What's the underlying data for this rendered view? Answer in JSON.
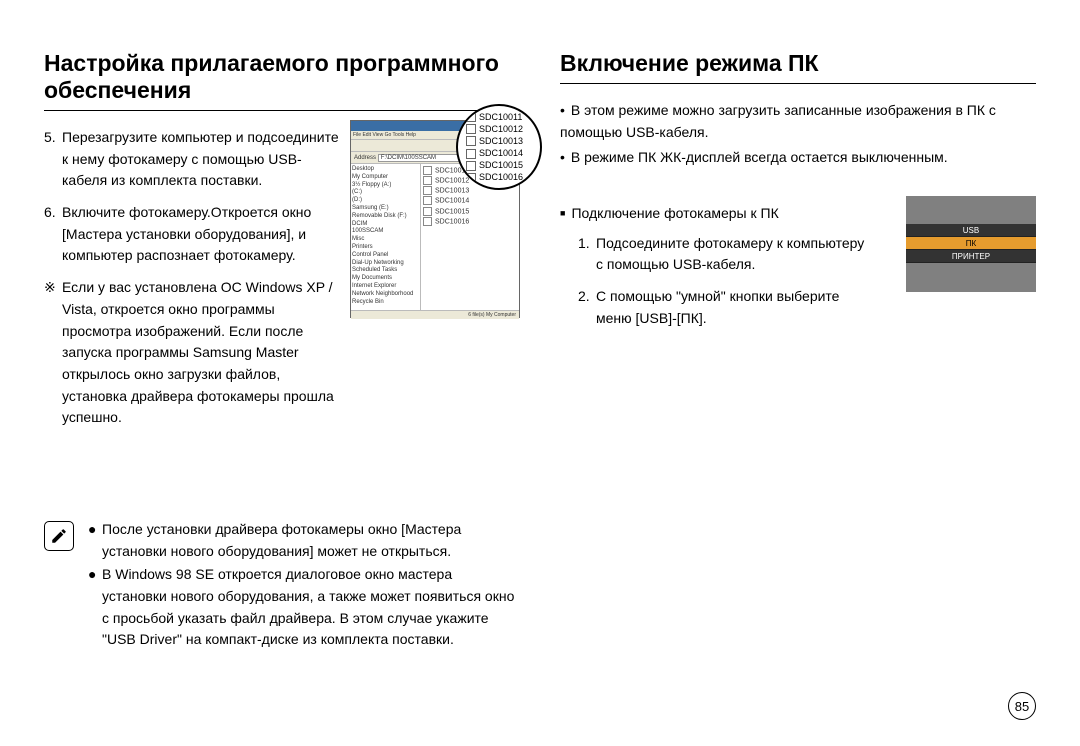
{
  "left": {
    "heading": "Настройка прилагаемого программного обеспечения",
    "step5": {
      "num": "5.",
      "text": "Перезагрузите компьютер и подсоедините к нему фотокамеру с помощью USB-кабеля из комплекта поставки."
    },
    "step6": {
      "num": "6.",
      "text": "Включите фотокамеру.Откроется окно [Мастера установки оборудования], и компьютер распознает фотокамеру."
    },
    "diamond_prefix": "※",
    "diamond_text": "Если у вас установлена ОС Windows XP / Vista, откроется окно программы просмотра изображений. Если после запуска программы Samsung Master открылось окно загрузки файлов, установка драйвера фотокамеры прошла успешно.",
    "note1": "После установки драйвера фотокамеры окно [Мастера установки нового оборудования] может не открыться.",
    "note2": "В Windows 98 SE откроется диалоговое окно мастера установки нового оборудования, а также может появиться окно с просьбой указать файл драйвера. В этом случае укажите \"USB Driver\" на компакт-диске из комплекта поставки."
  },
  "right": {
    "heading": "Включение режима ПК",
    "intro1": "В этом режиме можно загрузить записанные изображения в ПК с помощью USB-кабеля.",
    "intro2": "В режиме ПК ЖК-дисплей всегда остается выключенным.",
    "sub_heading": "Подключение фотокамеры к ПК",
    "step1": {
      "num": "1.",
      "text": "Подсоедините фотокамеру к компьютеру с помощью USB-кабеля."
    },
    "step2": {
      "num": "2.",
      "text": "С помощью \"умной\" кнопки выберите меню [USB]-[ПК]."
    }
  },
  "explorer": {
    "menu": "File  Edit  View  Go  Tools  Help",
    "address_label": "Address",
    "address_value": "F:\\DCIM\\100SSCAM",
    "tree": [
      "Desktop",
      " My Computer",
      "  3½ Floppy (A:)",
      "  (C:)",
      "  (D:)",
      "  Samsung (E:)",
      "  Removable Disk (F:)",
      "   DCIM",
      "    100SSCAM",
      "   Misc",
      "  Printers",
      "  Control Panel",
      "  Dial-Up Networking",
      "  Scheduled Tasks",
      " My Documents",
      " Internet Explorer",
      " Network Neighborhood",
      " Recycle Bin"
    ],
    "files": [
      "SDC10011",
      "SDC10012",
      "SDC10013",
      "SDC10014",
      "SDC10015",
      "SDC10016"
    ],
    "status": "6 file(s)   My Computer"
  },
  "magnifier": [
    "SDC10011",
    "SDC10012",
    "SDC10013",
    "SDC10014",
    "SDC10015",
    "SDC10016"
  ],
  "cam_menu": {
    "rows": [
      {
        "label": "USB",
        "sel": false
      },
      {
        "label": "ПК",
        "sel": true
      },
      {
        "label": "ПРИНТЕР",
        "sel": false
      }
    ]
  },
  "page_number": "85",
  "colors": {
    "bg": "#ffffff",
    "text": "#000000",
    "cam_bg": "#808080",
    "cam_row": "#333333",
    "cam_sel": "#e69c2e",
    "win_chrome": "#ece9d8",
    "win_title": "#3a6ea5"
  }
}
